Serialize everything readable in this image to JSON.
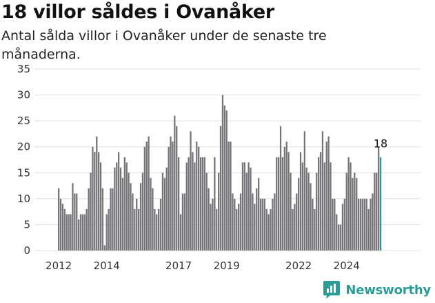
{
  "header": {
    "title": "18 villor såldes i Ovanåker",
    "subtitle": "Antal sålda villor i Ovanåker under de senaste tre månaderna."
  },
  "brand": {
    "name": "Newsworthy",
    "color": "#2a9b97"
  },
  "colors": {
    "bar": "#76757a",
    "highlight": "#2a9b97",
    "grid": "#dedede"
  },
  "chart_data": {
    "type": "bar",
    "start": "2012-01",
    "xlabel": "",
    "ylabel": "",
    "ylim": [
      0,
      35
    ],
    "yticks": [
      0,
      5,
      10,
      15,
      20,
      25,
      30,
      35
    ],
    "xticks": [
      {
        "label": "2012",
        "month": "2012-01"
      },
      {
        "label": "2014",
        "month": "2014-01"
      },
      {
        "label": "2017",
        "month": "2017-01"
      },
      {
        "label": "2019",
        "month": "2019-01"
      },
      {
        "label": "2022",
        "month": "2022-01"
      },
      {
        "label": "2024",
        "month": "2024-01"
      }
    ],
    "grid": true,
    "highlight_last": true,
    "last_value_label": "18",
    "values": [
      12,
      10,
      9,
      8,
      7,
      7,
      7,
      13,
      11,
      11,
      6,
      7,
      7,
      7,
      8,
      12,
      15,
      20,
      19,
      22,
      19,
      17,
      12,
      1,
      7,
      8,
      12,
      12,
      16,
      17,
      19,
      16,
      14,
      18,
      17,
      15,
      13,
      11,
      8,
      10,
      8,
      13,
      15,
      20,
      21,
      22,
      14,
      12,
      8,
      7,
      8,
      10,
      15,
      14,
      16,
      20,
      22,
      21,
      26,
      24,
      18,
      7,
      11,
      11,
      17,
      18,
      23,
      19,
      17,
      21,
      20,
      18,
      18,
      18,
      15,
      12,
      9,
      10,
      18,
      8,
      15,
      24,
      30,
      28,
      27,
      21,
      21,
      11,
      10,
      8,
      9,
      11,
      17,
      17,
      15,
      17,
      16,
      11,
      9,
      12,
      14,
      10,
      10,
      10,
      8,
      7,
      8,
      10,
      11,
      18,
      18,
      24,
      18,
      20,
      21,
      19,
      15,
      8,
      9,
      11,
      14,
      19,
      17,
      23,
      16,
      15,
      13,
      10,
      8,
      15,
      18,
      19,
      23,
      17,
      21,
      22,
      17,
      10,
      10,
      7,
      5,
      5,
      9,
      10,
      15,
      18,
      17,
      14,
      15,
      14,
      10,
      10,
      10,
      10,
      10,
      8,
      10,
      11,
      15,
      15,
      20,
      18
    ]
  }
}
